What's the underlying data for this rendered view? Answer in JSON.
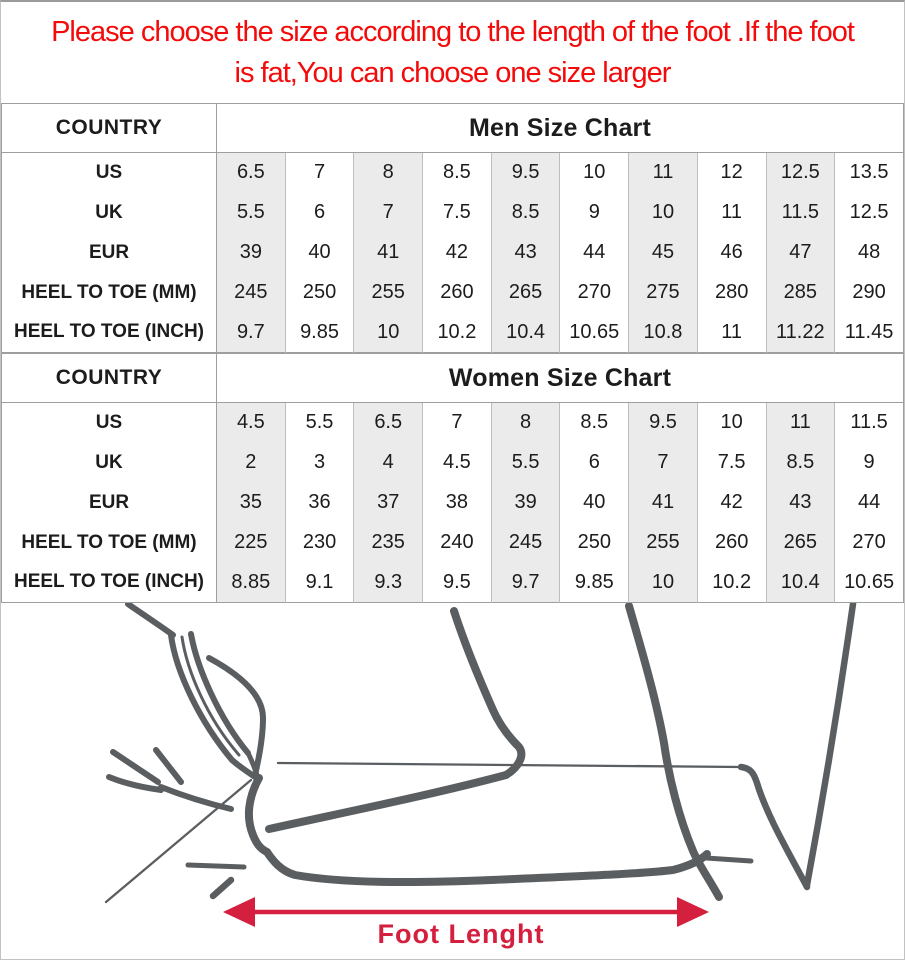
{
  "notice": {
    "line1": "Please choose the size according to the length of the foot .If the foot",
    "line2": "is fat,You can choose one size larger"
  },
  "tables": [
    {
      "country_label": "COUNTRY",
      "title": "Men Size Chart",
      "rows": [
        {
          "label": "US",
          "values": [
            "6.5",
            "7",
            "8",
            "8.5",
            "9.5",
            "10",
            "11",
            "12",
            "12.5",
            "13.5"
          ]
        },
        {
          "label": "UK",
          "values": [
            "5.5",
            "6",
            "7",
            "7.5",
            "8.5",
            "9",
            "10",
            "11",
            "11.5",
            "12.5"
          ]
        },
        {
          "label": "EUR",
          "values": [
            "39",
            "40",
            "41",
            "42",
            "43",
            "44",
            "45",
            "46",
            "47",
            "48"
          ]
        },
        {
          "label": "HEEL TO TOE (MM)",
          "values": [
            "245",
            "250",
            "255",
            "260",
            "265",
            "270",
            "275",
            "280",
            "285",
            "290"
          ]
        },
        {
          "label": "HEEL TO TOE (INCH)",
          "values": [
            "9.7",
            "9.85",
            "10",
            "10.2",
            "10.4",
            "10.65",
            "10.8",
            "11",
            "11.22",
            "11.45"
          ]
        }
      ]
    },
    {
      "country_label": "COUNTRY",
      "title": "Women Size Chart",
      "rows": [
        {
          "label": "US",
          "values": [
            "4.5",
            "5.5",
            "6.5",
            "7",
            "8",
            "8.5",
            "9.5",
            "10",
            "11",
            "11.5"
          ]
        },
        {
          "label": "UK",
          "values": [
            "2",
            "3",
            "4",
            "4.5",
            "5.5",
            "6",
            "7",
            "7.5",
            "8.5",
            "9"
          ]
        },
        {
          "label": "EUR",
          "values": [
            "35",
            "36",
            "37",
            "38",
            "39",
            "40",
            "41",
            "42",
            "43",
            "44"
          ]
        },
        {
          "label": "HEEL TO TOE (MM)",
          "values": [
            "225",
            "230",
            "235",
            "240",
            "245",
            "250",
            "255",
            "260",
            "265",
            "270"
          ]
        },
        {
          "label": "HEEL TO TOE (INCH)",
          "values": [
            "8.85",
            "9.1",
            "9.3",
            "9.5",
            "9.7",
            "9.85",
            "10",
            "10.2",
            "10.4",
            "10.65"
          ]
        }
      ]
    }
  ],
  "figure": {
    "arrow_label": "Foot Lenght"
  },
  "colors": {
    "notice-red": "#f30b0b",
    "arrow-red": "#d51f3f",
    "sketch-gray": "#5b5e61",
    "stripe-bg": "#ebebeb",
    "grid-line": "#bdbdbd",
    "frame-line": "#9e9e9e",
    "text-dark": "#1c1c1c"
  }
}
